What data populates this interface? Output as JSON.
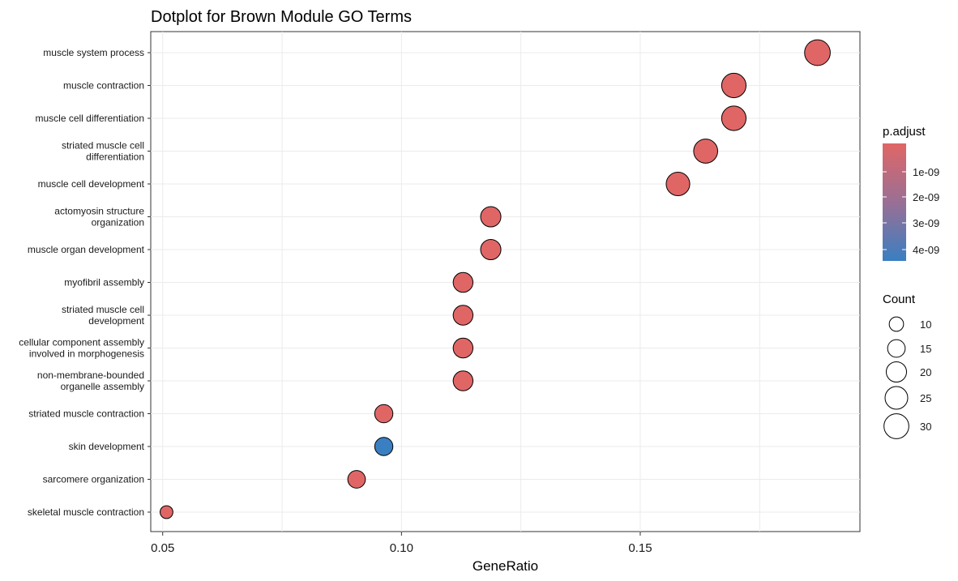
{
  "chart_data": {
    "type": "scatter",
    "title": "Dotplot for Brown Module GO Terms",
    "xlabel": "GeneRatio",
    "ylabel": "",
    "xlim": [
      0.0475,
      0.196
    ],
    "x_ticks": [
      "0.05",
      "0.10",
      "0.15"
    ],
    "x_tick_values": [
      0.05,
      0.1,
      0.15
    ],
    "grid": true,
    "legend_position": "right",
    "points": [
      {
        "term": "muscle system process",
        "x": 0.1871,
        "count": 32,
        "color": "#E06666"
      },
      {
        "term": "muscle contraction",
        "x": 0.1696,
        "count": 29,
        "color": "#E06666"
      },
      {
        "term": "muscle cell differentiation",
        "x": 0.1696,
        "count": 29,
        "color": "#E06666"
      },
      {
        "term": "striated muscle cell\ndifferentiation",
        "x": 0.1637,
        "count": 28,
        "color": "#E06666"
      },
      {
        "term": "muscle cell development",
        "x": 0.1579,
        "count": 27,
        "color": "#E06666"
      },
      {
        "term": "actomyosin structure\norganization",
        "x": 0.1187,
        "count": 20,
        "color": "#E06666"
      },
      {
        "term": "muscle organ development",
        "x": 0.1187,
        "count": 20,
        "color": "#E06666"
      },
      {
        "term": "myofibril assembly",
        "x": 0.1129,
        "count": 19,
        "color": "#E06666"
      },
      {
        "term": "striated muscle cell\ndevelopment",
        "x": 0.1129,
        "count": 19,
        "color": "#E06666"
      },
      {
        "term": "cellular component assembly\ninvolved in morphogenesis",
        "x": 0.1129,
        "count": 19,
        "color": "#E06666"
      },
      {
        "term": "non-membrane-bounded\norganelle assembly",
        "x": 0.1129,
        "count": 19,
        "color": "#E06666"
      },
      {
        "term": "striated muscle contraction",
        "x": 0.0963,
        "count": 16,
        "color": "#E06666"
      },
      {
        "term": "skin development",
        "x": 0.0963,
        "count": 16,
        "color": "#3A7FC1"
      },
      {
        "term": "sarcomere organization",
        "x": 0.0906,
        "count": 15,
        "color": "#E06666"
      },
      {
        "term": "skeletal muscle contraction",
        "x": 0.0508,
        "count": 8,
        "color": "#E06666"
      }
    ],
    "legend": {
      "color_title": "p.adjust",
      "color_labels": [
        "1e-09",
        "2e-09",
        "3e-09",
        "4e-09"
      ],
      "color_gradient": [
        "#E06666",
        "#3A7FC1"
      ],
      "size_title": "Count",
      "size_labels": [
        "10",
        "15",
        "20",
        "25",
        "30"
      ],
      "size_values": [
        10,
        15,
        20,
        25,
        30
      ]
    }
  }
}
